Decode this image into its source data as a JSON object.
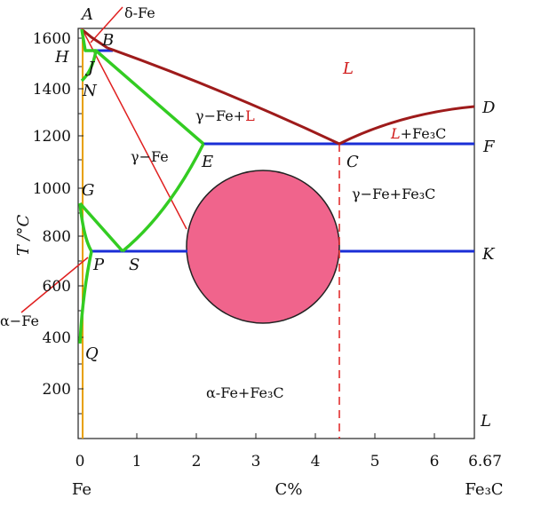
{
  "axes": {
    "y_title": "T /°C",
    "y_ticks": [
      "1600",
      "1400",
      "1200",
      "1000",
      "800",
      "600",
      "400",
      "200"
    ],
    "x_ticks": [
      "0",
      "1",
      "2",
      "3",
      "4",
      "5",
      "6",
      "6.67"
    ],
    "x_left_label": "Fe",
    "x_mid_label": "C%",
    "x_right_label": "Fe₃C"
  },
  "points": {
    "A": "A",
    "B": "B",
    "H": "H",
    "J": "J",
    "N": "N",
    "G": "G",
    "P": "P",
    "S": "S",
    "Q": "Q",
    "E": "E",
    "C": "C",
    "D": "D",
    "F": "F",
    "K": "K",
    "L": "L"
  },
  "regions": {
    "liquid": "L",
    "gamma_liquid_prefix": "γ−Fe+",
    "gamma_liquid_suffix": "L",
    "liquid_cementite_prefix": "L",
    "liquid_cementite_suffix": "+Fe₃C",
    "gamma": "γ−Fe",
    "gamma_cementite": "γ−Fe+Fe₃C",
    "alpha_cementite": "α-Fe+Fe₃C",
    "delta": "δ-Fe",
    "alpha": "α−Fe"
  },
  "colors": {
    "liquidus": "#9e1b1b",
    "solvus": "#33cc22",
    "isotherm": "#1a2ed6",
    "pointer": "#e02020",
    "highlight": "#f0648c",
    "fe_axis": "#e8a000"
  }
}
